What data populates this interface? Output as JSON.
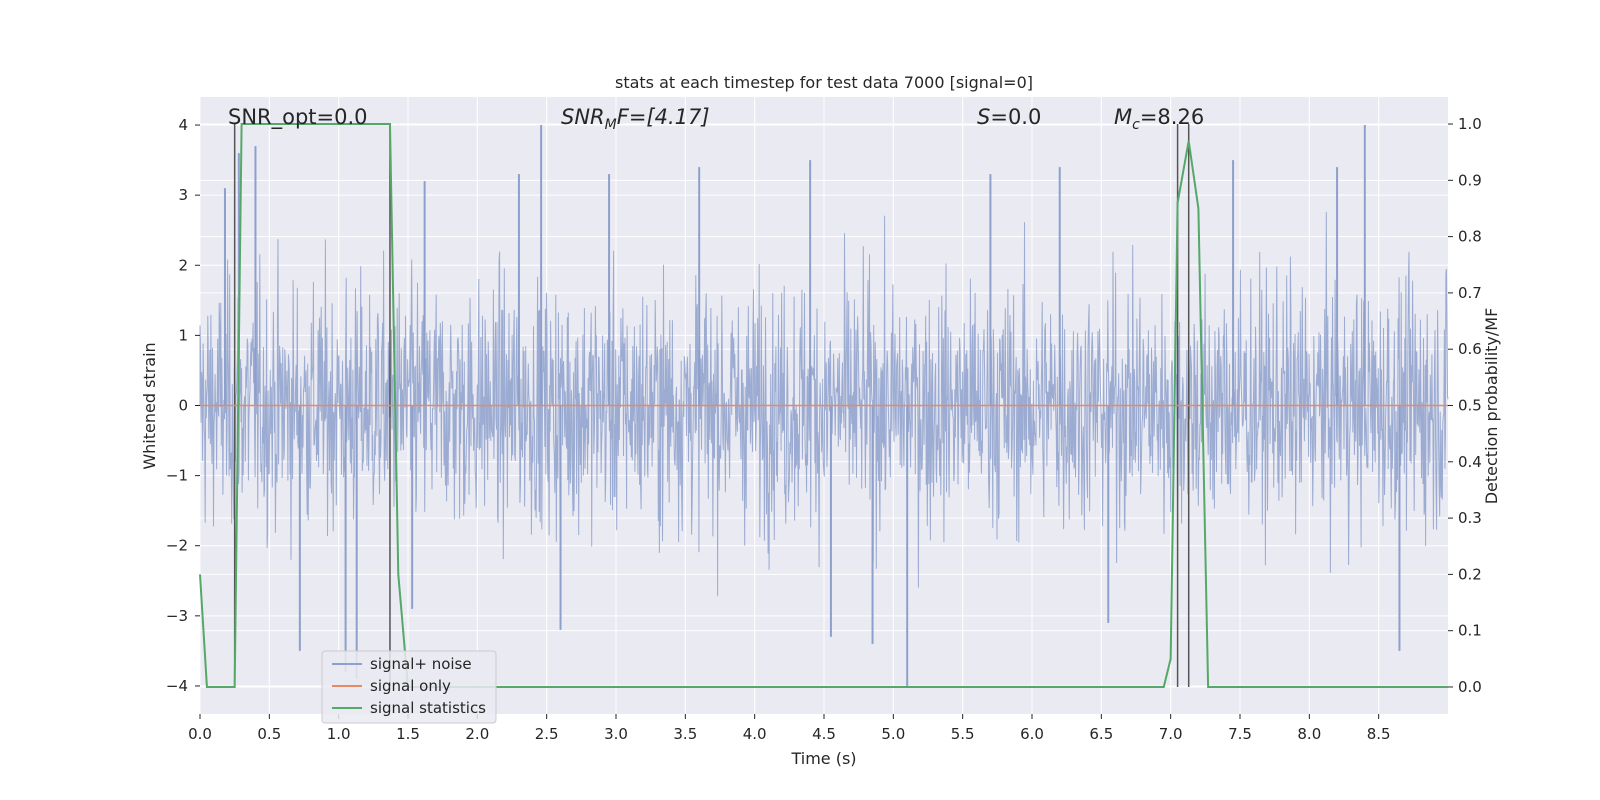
{
  "chart_data": {
    "type": "line",
    "title": "stats at each timestep for test data 7000 [signal=0]",
    "xlabel": "Time (s)",
    "ylabel": "Whitened strain",
    "y2label": "Detection probability/MF",
    "xlim": [
      0,
      9.0
    ],
    "ylim": [
      -4.4,
      4.4
    ],
    "y2lim": [
      -0.048,
      1.048
    ],
    "xticks": [
      0.0,
      0.5,
      1.0,
      1.5,
      2.0,
      2.5,
      3.0,
      3.5,
      4.0,
      4.5,
      5.0,
      5.5,
      6.0,
      6.5,
      7.0,
      7.5,
      8.0,
      8.5
    ],
    "xtick_labels": [
      "0.0",
      "0.5",
      "1.0",
      "1.5",
      "2.0",
      "2.5",
      "3.0",
      "3.5",
      "4.0",
      "4.5",
      "5.0",
      "5.5",
      "6.0",
      "6.5",
      "7.0",
      "7.5",
      "8.0",
      "8.5"
    ],
    "yticks": [
      -4,
      -3,
      -2,
      -1,
      0,
      1,
      2,
      3,
      4
    ],
    "ytick_labels": [
      "−4",
      "−3",
      "−2",
      "−1",
      "0",
      "1",
      "2",
      "3",
      "4"
    ],
    "y2ticks": [
      0.0,
      0.1,
      0.2,
      0.3,
      0.4,
      0.5,
      0.6,
      0.7,
      0.8,
      0.9,
      1.0
    ],
    "y2tick_labels": [
      "0.0",
      "0.1",
      "0.2",
      "0.3",
      "0.4",
      "0.5",
      "0.6",
      "0.7",
      "0.8",
      "0.9",
      "1.0"
    ],
    "grid": true,
    "legend_position": "lower-left",
    "annotations": {
      "snr_opt": "SNR_opt=0.0",
      "snr_mf_base": "SNR",
      "snr_mf_sub": "M",
      "snr_mf_rest": "F=[4.17]",
      "s_label": "S",
      "s_rest": "=0.0",
      "mc_base": "M",
      "mc_sub": "c",
      "mc_rest": "=8.26"
    },
    "series": [
      {
        "name": "signal+ noise",
        "color": "#8da0cb",
        "kind": "noise",
        "envelope_amplitude_typical": 2.0,
        "peak_samples": [
          {
            "t": 0.18,
            "v": 3.1
          },
          {
            "t": 0.28,
            "v": 3.6
          },
          {
            "t": 0.4,
            "v": 3.7
          },
          {
            "t": 0.72,
            "v": -3.5
          },
          {
            "t": 1.05,
            "v": -3.8
          },
          {
            "t": 1.13,
            "v": -3.9
          },
          {
            "t": 1.53,
            "v": -2.9
          },
          {
            "t": 1.62,
            "v": 3.2
          },
          {
            "t": 2.3,
            "v": 3.3
          },
          {
            "t": 2.46,
            "v": 4.0
          },
          {
            "t": 2.6,
            "v": -3.2
          },
          {
            "t": 2.95,
            "v": 3.3
          },
          {
            "t": 3.6,
            "v": 3.4
          },
          {
            "t": 4.4,
            "v": 3.5
          },
          {
            "t": 4.55,
            "v": -3.3
          },
          {
            "t": 4.85,
            "v": -3.4
          },
          {
            "t": 5.1,
            "v": -4.0
          },
          {
            "t": 5.7,
            "v": 3.3
          },
          {
            "t": 6.2,
            "v": 3.4
          },
          {
            "t": 6.55,
            "v": -3.1
          },
          {
            "t": 7.45,
            "v": 3.5
          },
          {
            "t": 8.2,
            "v": 3.4
          },
          {
            "t": 8.4,
            "v": 4.0
          },
          {
            "t": 8.65,
            "v": -3.5
          }
        ]
      },
      {
        "name": "signal only",
        "color": "#e78a61",
        "kind": "line",
        "x": [
          0.0,
          9.0
        ],
        "y": [
          0.0,
          0.0
        ]
      },
      {
        "name": "signal statistics",
        "color": "#55a868",
        "kind": "line",
        "axis": "right",
        "x": [
          0.0,
          0.05,
          0.25,
          0.3,
          1.37,
          1.43,
          1.5,
          1.55,
          6.95,
          7.0,
          7.05,
          7.13,
          7.2,
          7.27,
          7.32,
          9.0
        ],
        "y": [
          0.2,
          0.0,
          0.0,
          1.0,
          1.0,
          0.2,
          0.0,
          0.0,
          0.0,
          0.05,
          0.86,
          0.97,
          0.85,
          0.0,
          0.0,
          0.0
        ]
      }
    ],
    "vertical_markers": [
      0.25,
      1.37,
      7.05,
      7.13
    ]
  }
}
